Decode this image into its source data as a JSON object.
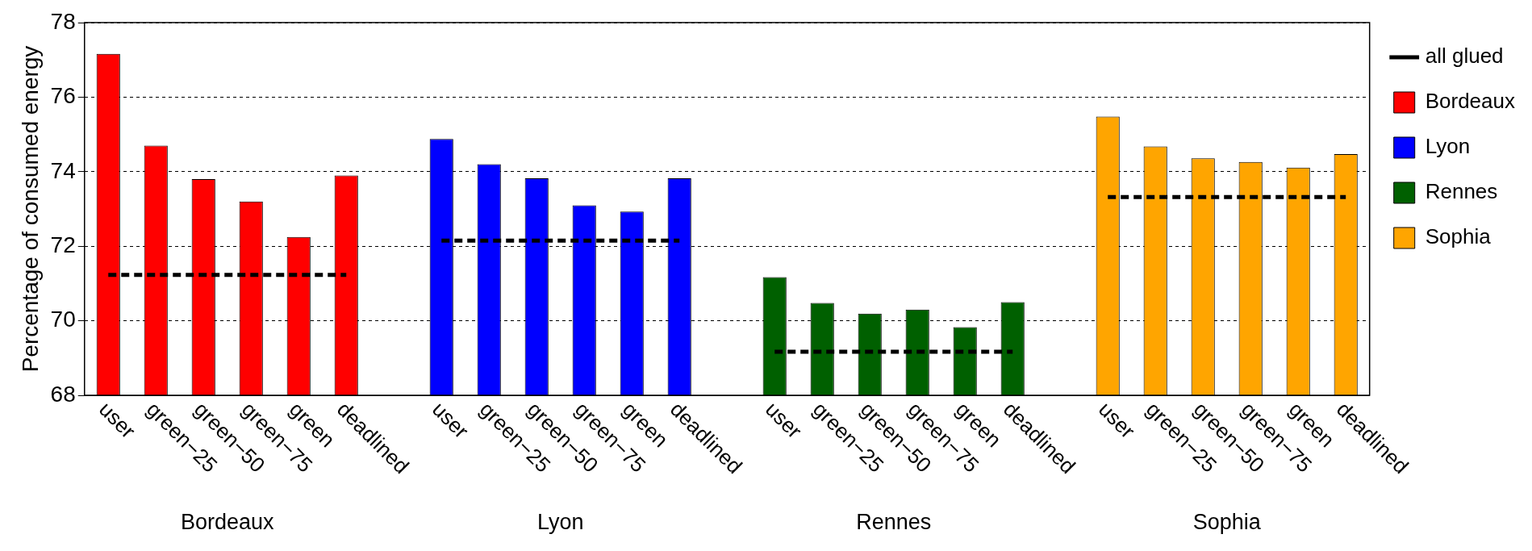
{
  "chart_data": {
    "type": "bar",
    "ylabel": "Percentage of consumed energy",
    "categories": [
      "user",
      "green−25",
      "green−50",
      "green−75",
      "green",
      "deadlined",
      null,
      "user",
      "green−25",
      "green−50",
      "green−75",
      "green",
      "deadlined",
      null,
      "user",
      "green−25",
      "green−50",
      "green−75",
      "green",
      "deadlined",
      null,
      "user",
      "green−25",
      "green−50",
      "green−75",
      "green",
      "deadlined"
    ],
    "series": [
      {
        "name": "Bordeaux",
        "color": "#ff0000",
        "values": [
          77.16,
          74.7,
          73.8,
          73.2,
          72.25,
          73.9,
          null,
          null,
          null,
          null,
          null,
          null,
          null,
          null,
          null,
          null,
          null,
          null,
          null,
          null,
          null,
          null,
          null,
          null,
          null,
          null,
          null
        ]
      },
      {
        "name": "Lyon",
        "color": "#0000ff",
        "values": [
          null,
          null,
          null,
          null,
          null,
          null,
          null,
          74.88,
          74.2,
          73.82,
          73.1,
          72.93,
          73.82,
          null,
          null,
          null,
          null,
          null,
          null,
          null,
          null,
          null,
          null,
          null,
          null,
          null,
          null
        ]
      },
      {
        "name": "Rennes",
        "color": "#006000",
        "values": [
          null,
          null,
          null,
          null,
          null,
          null,
          null,
          null,
          null,
          null,
          null,
          null,
          null,
          null,
          71.17,
          70.48,
          70.19,
          70.3,
          69.83,
          70.5,
          null,
          null,
          null,
          null,
          null,
          null,
          null
        ]
      },
      {
        "name": "Sophia",
        "color": "#ffa500",
        "values": [
          null,
          null,
          null,
          null,
          null,
          null,
          null,
          null,
          null,
          null,
          null,
          null,
          null,
          null,
          null,
          null,
          null,
          null,
          null,
          null,
          null,
          75.48,
          74.68,
          74.36,
          74.26,
          74.11,
          74.47
        ]
      },
      {
        "name": "all glued",
        "type": "line",
        "color": "#000000",
        "line_style": "dashed",
        "marker": "none",
        "values": [
          71.23,
          71.23,
          71.23,
          71.23,
          71.23,
          71.23,
          null,
          72.15,
          72.15,
          72.15,
          72.15,
          72.15,
          72.15,
          null,
          69.17,
          69.17,
          69.17,
          69.17,
          69.17,
          69.17,
          null,
          73.32,
          73.32,
          73.32,
          73.32,
          73.32,
          73.32
        ]
      }
    ],
    "annotations": [
      "Bordeaux",
      "Lyon",
      "Rennes",
      "Sophia"
    ],
    "ylim": [
      68,
      78
    ],
    "yticks": [
      68,
      70,
      72,
      74,
      76,
      78
    ],
    "grid": "y",
    "legend": "top right"
  }
}
